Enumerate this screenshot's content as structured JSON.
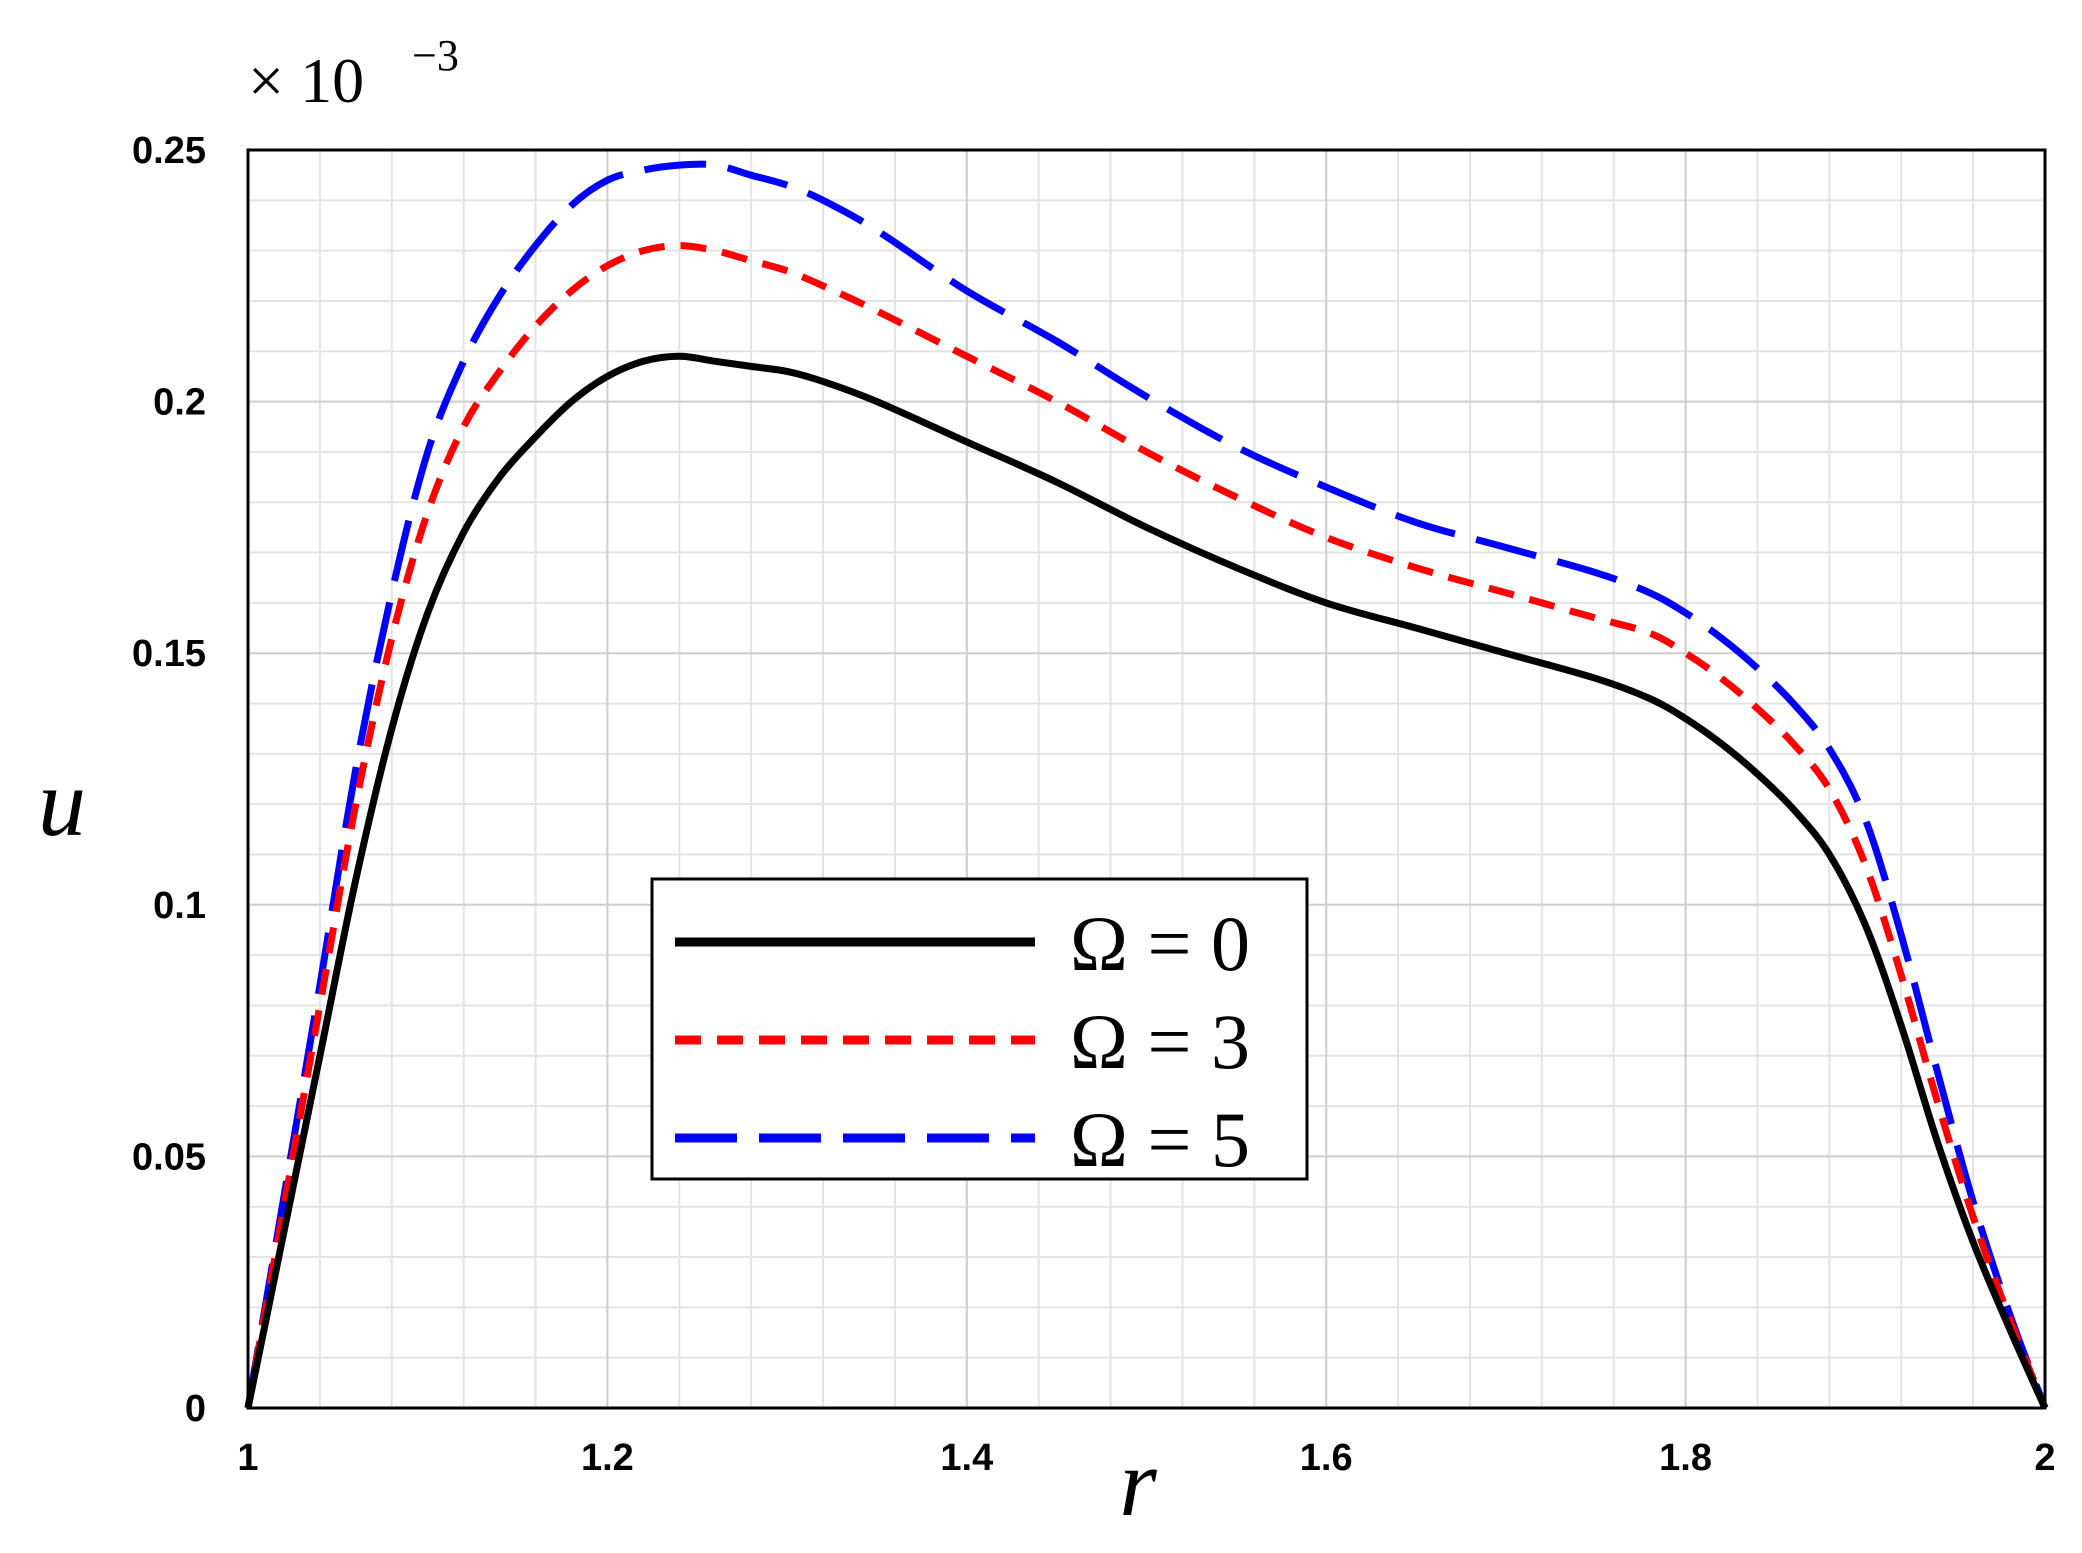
{
  "chart_data": {
    "type": "line",
    "title": "",
    "xlabel": "r",
    "ylabel": "u",
    "scale_note": {
      "base": "× 10",
      "exponent": "−3"
    },
    "xlim": [
      1,
      2
    ],
    "ylim": [
      0,
      0.25
    ],
    "x_ticks": [
      1,
      1.2,
      1.4,
      1.6,
      1.8,
      2
    ],
    "x_tick_labels": [
      "1",
      "1.2",
      "1.4",
      "1.6",
      "1.8",
      "2"
    ],
    "y_ticks": [
      0,
      0.05,
      0.1,
      0.15,
      0.2,
      0.25
    ],
    "y_tick_labels": [
      "0",
      "0.05",
      "0.1",
      "0.15",
      "0.2",
      "0.25"
    ],
    "grid": true,
    "legend_position": "center",
    "series": [
      {
        "name": "Ω = 0",
        "color": "#000000",
        "style": "solid",
        "x": [
          1.0,
          1.02,
          1.04,
          1.06,
          1.08,
          1.1,
          1.12,
          1.14,
          1.16,
          1.18,
          1.2,
          1.22,
          1.24,
          1.26,
          1.28,
          1.3,
          1.32,
          1.35,
          1.4,
          1.45,
          1.5,
          1.55,
          1.6,
          1.65,
          1.7,
          1.75,
          1.78,
          1.8,
          1.82,
          1.84,
          1.86,
          1.88,
          1.9,
          1.92,
          1.94,
          1.96,
          1.98,
          2.0
        ],
        "y": [
          0.0,
          0.035,
          0.07,
          0.105,
          0.135,
          0.158,
          0.174,
          0.185,
          0.193,
          0.2,
          0.205,
          0.208,
          0.209,
          0.208,
          0.207,
          0.206,
          0.204,
          0.2,
          0.192,
          0.184,
          0.175,
          0.167,
          0.16,
          0.155,
          0.15,
          0.145,
          0.141,
          0.137,
          0.132,
          0.126,
          0.119,
          0.11,
          0.096,
          0.076,
          0.053,
          0.033,
          0.016,
          0.0
        ]
      },
      {
        "name": "Ω = 3",
        "color": "#ff0000",
        "style": "dashed",
        "x": [
          1.0,
          1.02,
          1.04,
          1.06,
          1.08,
          1.1,
          1.12,
          1.14,
          1.16,
          1.18,
          1.2,
          1.22,
          1.24,
          1.26,
          1.28,
          1.3,
          1.32,
          1.35,
          1.4,
          1.45,
          1.5,
          1.55,
          1.6,
          1.65,
          1.7,
          1.75,
          1.78,
          1.8,
          1.82,
          1.84,
          1.86,
          1.88,
          1.9,
          1.92,
          1.94,
          1.96,
          1.98,
          2.0
        ],
        "y": [
          0.0,
          0.04,
          0.08,
          0.12,
          0.153,
          0.178,
          0.195,
          0.206,
          0.215,
          0.222,
          0.227,
          0.23,
          0.231,
          0.23,
          0.228,
          0.226,
          0.223,
          0.218,
          0.209,
          0.2,
          0.19,
          0.181,
          0.173,
          0.167,
          0.162,
          0.157,
          0.154,
          0.15,
          0.145,
          0.139,
          0.132,
          0.123,
          0.108,
          0.086,
          0.061,
          0.038,
          0.018,
          0.0
        ]
      },
      {
        "name": "Ω = 5",
        "color": "#0000ff",
        "style": "long-dash",
        "x": [
          1.0,
          1.02,
          1.04,
          1.06,
          1.08,
          1.1,
          1.12,
          1.14,
          1.16,
          1.18,
          1.2,
          1.22,
          1.24,
          1.26,
          1.28,
          1.3,
          1.32,
          1.35,
          1.4,
          1.45,
          1.5,
          1.55,
          1.6,
          1.65,
          1.7,
          1.75,
          1.78,
          1.8,
          1.82,
          1.84,
          1.86,
          1.88,
          1.9,
          1.92,
          1.94,
          1.96,
          1.98,
          2.0
        ],
        "y": [
          0.0,
          0.042,
          0.084,
          0.127,
          0.162,
          0.19,
          0.208,
          0.221,
          0.231,
          0.239,
          0.244,
          0.246,
          0.247,
          0.247,
          0.245,
          0.243,
          0.24,
          0.234,
          0.222,
          0.212,
          0.201,
          0.191,
          0.183,
          0.176,
          0.171,
          0.166,
          0.162,
          0.158,
          0.153,
          0.147,
          0.14,
          0.131,
          0.117,
          0.094,
          0.067,
          0.041,
          0.019,
          0.0
        ]
      }
    ]
  }
}
